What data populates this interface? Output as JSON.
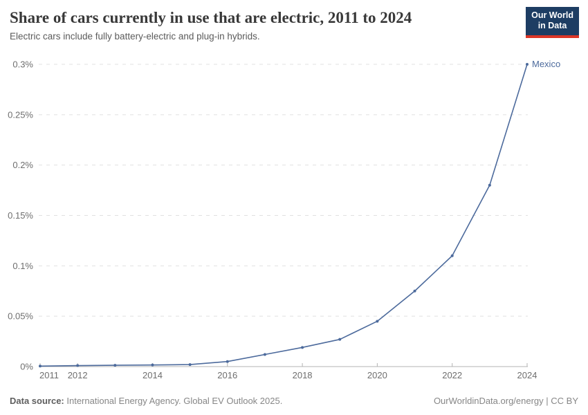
{
  "header": {
    "title": "Share of cars currently in use that are electric, 2011 to 2024",
    "subtitle": "Electric cars include fully battery-electric and plug-in hybrids.",
    "logo": {
      "line1": "Our World",
      "line2": "in Data",
      "bg_color": "#1d3d63",
      "bar_color": "#dc3627"
    }
  },
  "chart_data": {
    "type": "line",
    "title": "Share of cars currently in use that are electric, 2011 to 2024",
    "subtitle": "Electric cars include fully battery-electric and plug-in hybrids.",
    "x": [
      2011,
      2012,
      2013,
      2014,
      2015,
      2016,
      2017,
      2018,
      2019,
      2020,
      2021,
      2022,
      2023,
      2024
    ],
    "series": [
      {
        "name": "Mexico",
        "color": "#4c6a9c",
        "values": [
          0.0005,
          0.001,
          0.0013,
          0.0016,
          0.002,
          0.005,
          0.012,
          0.019,
          0.027,
          0.045,
          0.075,
          0.11,
          0.18,
          0.3
        ]
      }
    ],
    "xlim": [
      2011,
      2024
    ],
    "ylim": [
      0,
      0.3
    ],
    "unit": "%",
    "grid": "horizontal-dashed",
    "legend_position": "end-of-line-label",
    "x_tick_years": [
      2011,
      2012,
      2014,
      2016,
      2018,
      2020,
      2022,
      2024
    ],
    "x_tick_labels": [
      "2011",
      "2012",
      "2014",
      "2016",
      "2018",
      "2020",
      "2022",
      "2024"
    ],
    "y_ticks": [
      {
        "value": 0,
        "label": "0%"
      },
      {
        "value": 0.05,
        "label": "0.05%"
      },
      {
        "value": 0.1,
        "label": "0.1%"
      },
      {
        "value": 0.15,
        "label": "0.15%"
      },
      {
        "value": 0.2,
        "label": "0.2%"
      },
      {
        "value": 0.25,
        "label": "0.25%"
      },
      {
        "value": 0.3,
        "label": "0.3%"
      }
    ],
    "colors": {
      "line": "#4c6a9c",
      "gridline": "#e0e0e0",
      "axis": "#b3b3b3",
      "tick_label": "#6e6e6e"
    }
  },
  "footer": {
    "source_label": "Data source:",
    "source_text": "International Energy Agency. Global EV Outlook 2025.",
    "right_text": "OurWorldinData.org/energy | CC BY"
  }
}
